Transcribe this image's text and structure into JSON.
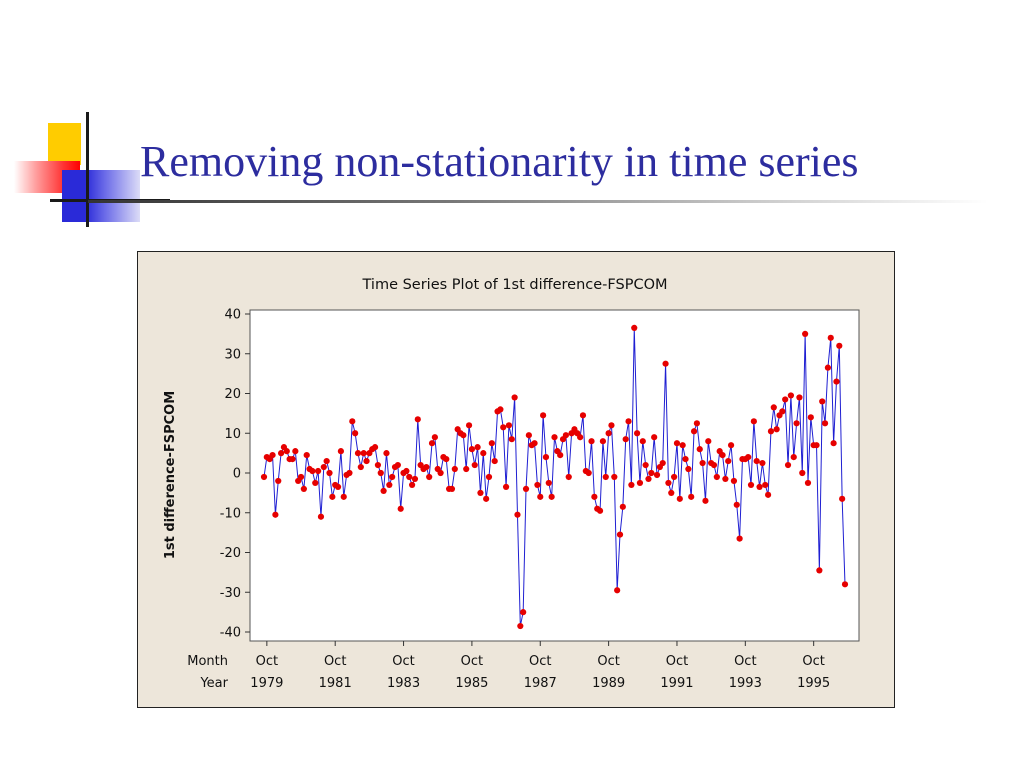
{
  "slide": {
    "title": "Removing non-stationarity in time series"
  },
  "chart_data": {
    "type": "line",
    "title": "Time Series Plot of 1st difference-FSPCOM",
    "xlabel": "",
    "ylabel": "1st difference-FSPCOM",
    "ylim": [
      -40,
      40
    ],
    "yticks": [
      40,
      30,
      20,
      10,
      0,
      -10,
      -20,
      -30,
      -40
    ],
    "grid": false,
    "legend": "none",
    "x_axis_rows": [
      {
        "label": "Month",
        "ticks": [
          "Oct",
          "Oct",
          "Oct",
          "Oct",
          "Oct",
          "Oct",
          "Oct",
          "Oct",
          "Oct"
        ]
      },
      {
        "label": "Year",
        "ticks": [
          "1979",
          "1981",
          "1983",
          "1985",
          "1987",
          "1989",
          "1991",
          "1993",
          "1995"
        ]
      }
    ],
    "x_tick_index": [
      1,
      25,
      49,
      73,
      97,
      121,
      145,
      169,
      193
    ],
    "series": [
      {
        "values": [
          -1,
          4,
          3.5,
          4.5,
          -10.5,
          -2,
          5,
          6.5,
          5.5,
          3.5,
          3.5,
          5.5,
          -2,
          -1,
          -4,
          4.5,
          1,
          0.5,
          -2.5,
          0.5,
          -11,
          1.5,
          3,
          0,
          -6,
          -3,
          -3.5,
          5.5,
          -6,
          -0.5,
          0,
          13,
          10,
          5,
          1.5,
          5,
          3,
          5,
          6,
          6.5,
          2,
          0,
          -4.5,
          5,
          -3,
          -1,
          1.5,
          2,
          -9,
          0,
          0.5,
          -1,
          -3,
          -1.5,
          13.5,
          2,
          1,
          1.5,
          -1,
          7.5,
          9,
          1,
          0,
          4,
          3.5,
          -4,
          -4,
          1,
          11,
          10,
          9.5,
          1,
          12,
          6,
          2,
          6.5,
          -5,
          5,
          -6.5,
          -1,
          7.5,
          3,
          15.5,
          16,
          11.5,
          -3.5,
          12,
          8.5,
          19,
          -10.5,
          -38.5,
          -35,
          -4,
          9.5,
          7,
          7.5,
          -3,
          -6,
          14.5,
          4,
          -2.5,
          -6,
          9,
          5.5,
          4.5,
          8.5,
          9.5,
          -1,
          10,
          11,
          10,
          9,
          14.5,
          0.5,
          0,
          8,
          -6,
          -9,
          -9.5,
          8,
          -1,
          10,
          12,
          -1,
          -29.5,
          -15.5,
          -8.5,
          8.5,
          13,
          -3,
          36.5,
          10,
          -2.5,
          8,
          2,
          -1.5,
          0,
          9,
          -0.5,
          1.5,
          2.5,
          27.5,
          -2.5,
          -5,
          -1,
          7.5,
          -6.5,
          7,
          3.5,
          1,
          -6,
          10.5,
          12.5,
          6,
          2.5,
          -7,
          8,
          2.5,
          2,
          -1,
          5.5,
          4.5,
          -1.5,
          3,
          7,
          -2,
          -8,
          -16.5,
          3.5,
          3.5,
          4,
          -3,
          13,
          3,
          -3.5,
          2.5,
          -3,
          -5.5,
          10.5,
          16.5,
          11,
          14.5,
          15.5,
          18.5,
          2,
          19.5,
          4,
          12.5,
          19,
          0,
          35,
          -2.5,
          14,
          7,
          7,
          -24.5,
          18,
          12.5,
          26.5,
          34,
          7.5,
          23,
          32,
          -6.5,
          -28
        ]
      }
    ],
    "colors": {
      "line": "#1f1fd2",
      "marker": "#e60000",
      "plot_background": "#ffffff",
      "frame_background": "#ede6da"
    }
  }
}
